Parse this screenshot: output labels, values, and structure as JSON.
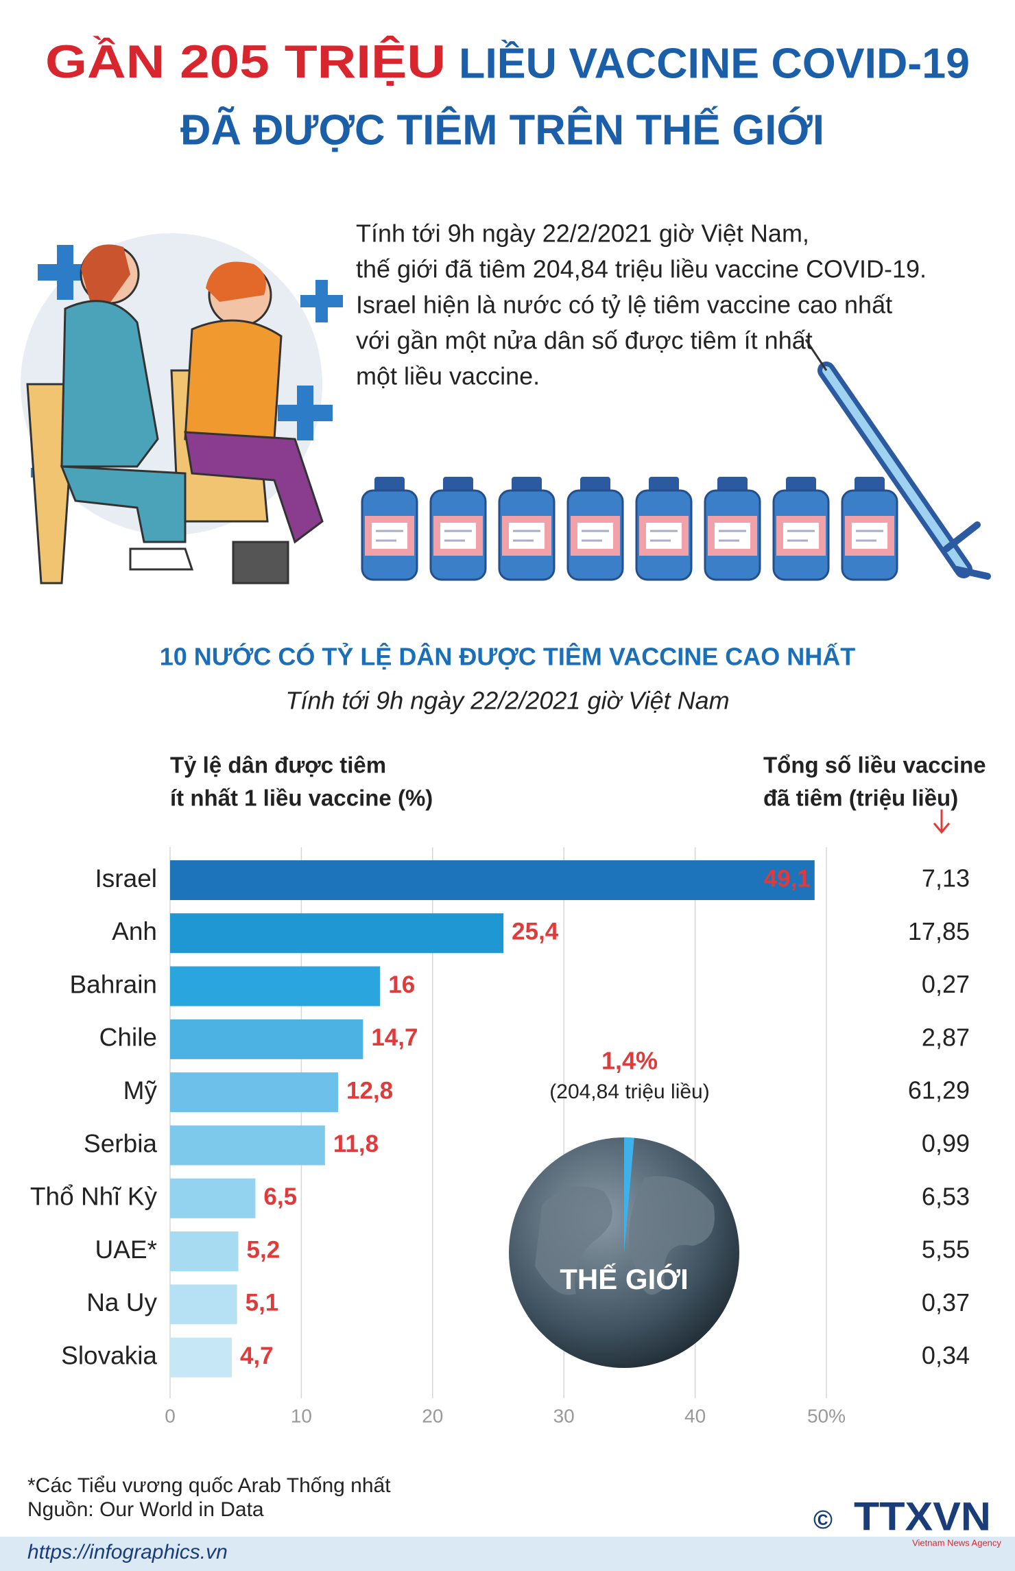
{
  "header": {
    "title_highlight": "GẦN 205 TRIỆU",
    "title_rest": "LIỀU VACCINE COVID-19",
    "title_line2": "ĐÃ ĐƯỢC TIÊM TRÊN THẾ GIỚI"
  },
  "intro": [
    "Tính tới 9h ngày 22/2/2021 giờ Việt Nam,",
    "thế giới đã tiêm 204,84 triệu liều vaccine COVID-19.",
    "Israel hiện là nước có tỷ lệ tiêm vaccine cao nhất",
    "với gần một nửa dân số được tiêm ít nhất",
    "một liều vaccine."
  ],
  "chart_data": {
    "type": "bar",
    "orientation": "horizontal",
    "title": "10 NƯỚC CÓ TỶ LỆ DÂN ĐƯỢC TIÊM VACCINE CAO NHẤT",
    "subtitle": "Tính tới 9h ngày 22/2/2021 giờ Việt Nam",
    "x_label": [
      "Tỷ lệ dân được tiêm",
      "ít nhất 1 liều vaccine (%)"
    ],
    "categories": [
      "Israel",
      "Anh",
      "Bahrain",
      "Chile",
      "Mỹ",
      "Serbia",
      "Thổ Nhĩ Kỳ",
      "UAE*",
      "Na Uy",
      "Slovakia"
    ],
    "values": [
      49.1,
      25.4,
      16,
      14.7,
      12.8,
      11.8,
      6.5,
      5.2,
      5.1,
      4.7
    ],
    "value_labels": [
      "49,1",
      "25,4",
      "16",
      "14,7",
      "12,8",
      "11,8",
      "6,5",
      "5,2",
      "5,1",
      "4,7"
    ],
    "colors": [
      "#1d74ba",
      "#1e97d3",
      "#2aa5dd",
      "#4cb2e3",
      "#6cc0e9",
      "#7cc9ec",
      "#93d3ef",
      "#a7dbf2",
      "#b6e1f4",
      "#c5e7f6"
    ],
    "xlim": [
      0,
      50
    ],
    "xticks": [
      0,
      10,
      20,
      30,
      40,
      {
        "value": 50,
        "label": "50%"
      }
    ],
    "grid": true,
    "totals": {
      "header": [
        "Tổng số liều vaccine",
        "đã tiêm (triệu liều)"
      ],
      "values": [
        7.13,
        17.85,
        0.27,
        2.87,
        61.29,
        0.99,
        6.53,
        5.55,
        0.37,
        0.34
      ],
      "value_labels": [
        "7,13",
        "17,85",
        "0,27",
        "2,87",
        "61,29",
        "0,99",
        "6,53",
        "5,55",
        "0,37",
        "0,34"
      ]
    },
    "world": {
      "label": "THẾ GIỚI",
      "value": 1.4,
      "value_label": "1,4%",
      "doses_label": "(204,84 triệu liều)"
    }
  },
  "footer": {
    "note": "*Các Tiểu vương quốc Arab Thống nhất",
    "source": "Nguồn: Our World in Data",
    "url": "https://infographics.vn",
    "logo": "TTXVN",
    "agency": "Vietnam News Agency",
    "copyright": "©"
  }
}
